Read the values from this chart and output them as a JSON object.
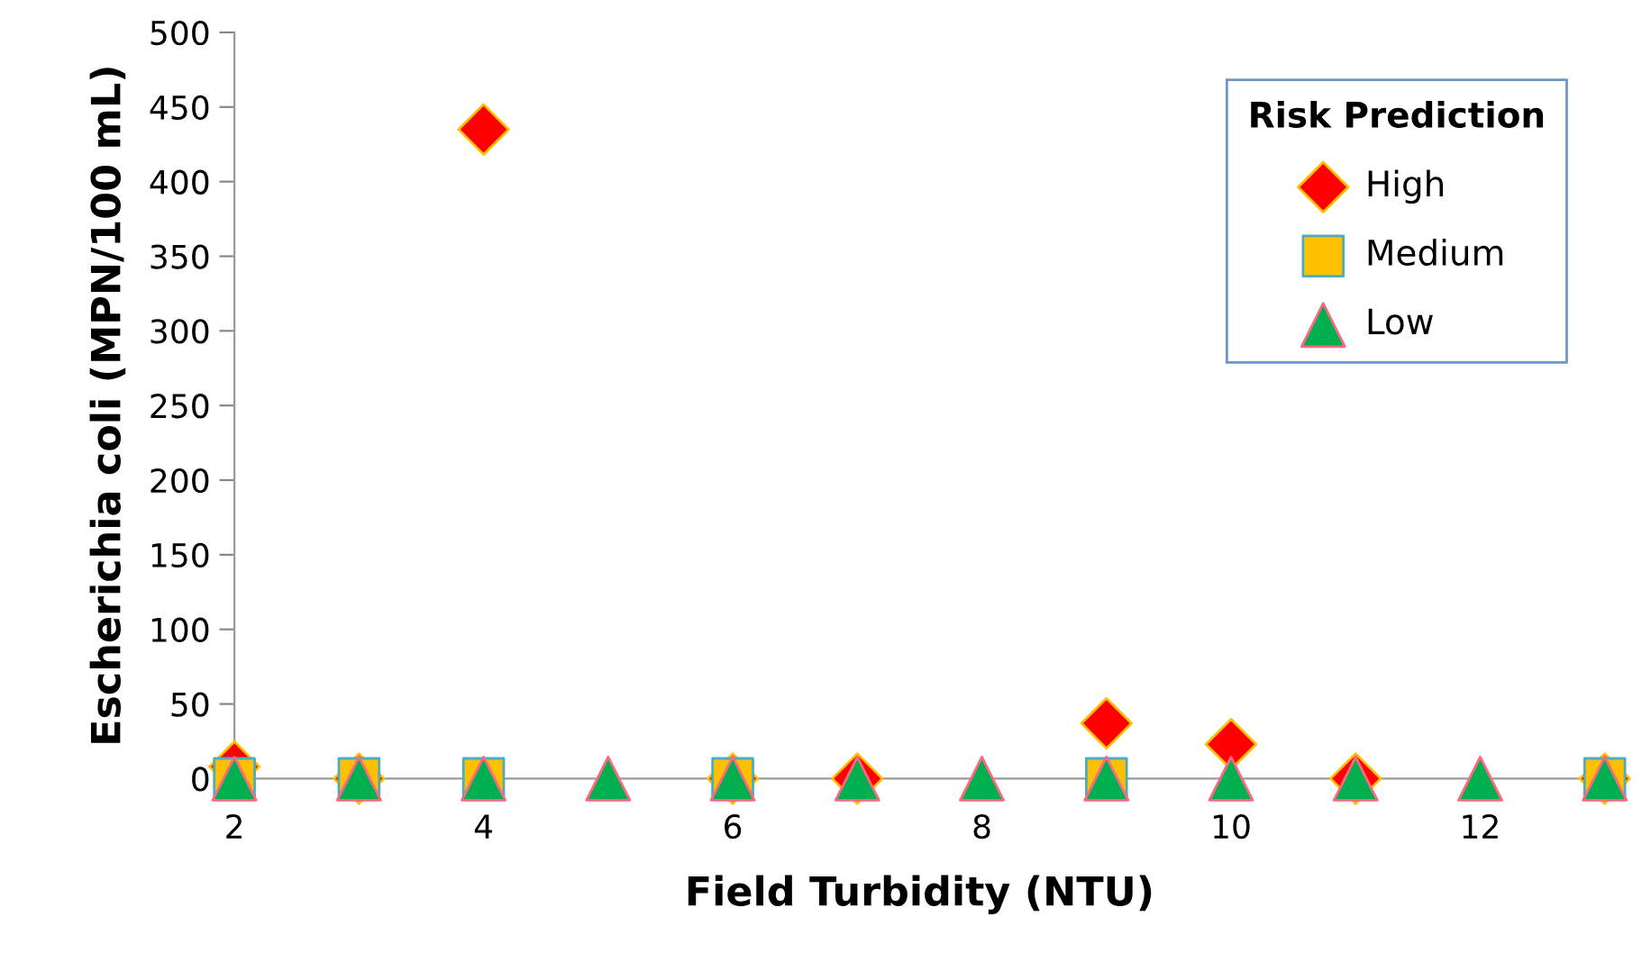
{
  "chart_data": {
    "type": "scatter",
    "xlabel": "Field Turbidity (NTU)",
    "ylabel": "Escherichia coli (MPN/100 mL)",
    "legend_title": "Risk Prediction",
    "legend": "top right",
    "xlim": [
      2,
      13
    ],
    "xticks": [
      2,
      4,
      6,
      8,
      10,
      12
    ],
    "ylim": [
      0,
      500
    ],
    "yticks": [
      0,
      50,
      100,
      150,
      200,
      250,
      300,
      350,
      400,
      450,
      500
    ],
    "grid": false,
    "series": [
      {
        "name": "High",
        "color": "#ff0000",
        "marker": "diamond",
        "x": [
          2,
          3,
          4,
          6,
          7,
          9,
          10,
          11,
          13
        ],
        "values": [
          8,
          0,
          435,
          0,
          0,
          37,
          23,
          0,
          0
        ]
      },
      {
        "name": "Medium",
        "color": "#ffc000",
        "marker": "square",
        "x": [
          2,
          3,
          4,
          6,
          9,
          13
        ],
        "values": [
          0,
          0,
          0,
          0,
          0,
          0
        ]
      },
      {
        "name": "Low",
        "color": "#00b050",
        "marker": "triangle",
        "x": [
          2,
          3,
          4,
          5,
          6,
          7,
          8,
          9,
          10,
          11,
          12,
          13
        ],
        "values": [
          0,
          0,
          0,
          0,
          0,
          0,
          0,
          0,
          0,
          0,
          0,
          0
        ]
      }
    ]
  }
}
